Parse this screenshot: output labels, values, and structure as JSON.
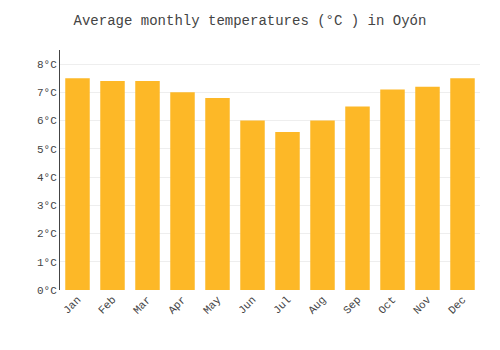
{
  "chart_data": {
    "type": "bar",
    "title": "Average monthly temperatures (°C ) in Oyón",
    "categories": [
      "Jan",
      "Feb",
      "Mar",
      "Apr",
      "May",
      "Jun",
      "Jul",
      "Aug",
      "Sep",
      "Oct",
      "Nov",
      "Dec"
    ],
    "values": [
      7.5,
      7.4,
      7.4,
      7.0,
      6.8,
      6.0,
      5.6,
      6.0,
      6.5,
      7.1,
      7.2,
      7.5
    ],
    "color": "#FDB827",
    "ylim": [
      0,
      8.5
    ],
    "yticks": [
      {
        "value": 0,
        "label": "0°C"
      },
      {
        "value": 1,
        "label": "1°C"
      },
      {
        "value": 2,
        "label": "2°C"
      },
      {
        "value": 3,
        "label": "3°C"
      },
      {
        "value": 4,
        "label": "4°C"
      },
      {
        "value": 5,
        "label": "5°C"
      },
      {
        "value": 6,
        "label": "6°C"
      },
      {
        "value": 7,
        "label": "7°C"
      },
      {
        "value": 8,
        "label": "8°C"
      }
    ],
    "grid": true
  }
}
